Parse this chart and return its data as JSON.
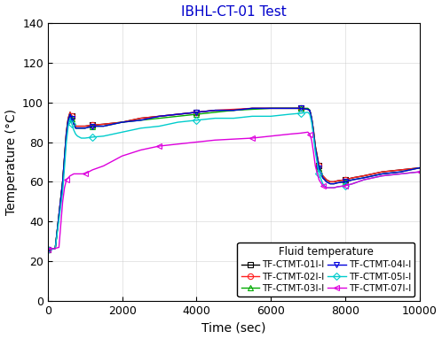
{
  "title": "IBHL-CT-01 Test",
  "xlabel": "Time (sec)",
  "ylabel": "Temperature (°C)",
  "xlim": [
    0,
    10000
  ],
  "ylim": [
    0,
    140
  ],
  "yticks": [
    0,
    20,
    40,
    60,
    80,
    100,
    120,
    140
  ],
  "xticks": [
    0,
    2000,
    4000,
    6000,
    8000,
    10000
  ],
  "legend_title": "Fluid temperature",
  "series": [
    {
      "label": "TF-CTMT-01I-I",
      "color": "#000000",
      "marker": "s",
      "marker_size": 4.5,
      "points": [
        [
          0,
          26
        ],
        [
          200,
          26.5
        ],
        [
          400,
          60
        ],
        [
          500,
          85
        ],
        [
          550,
          92
        ],
        [
          600,
          95
        ],
        [
          650,
          93
        ],
        [
          700,
          90
        ],
        [
          750,
          88
        ],
        [
          800,
          88
        ],
        [
          900,
          88
        ],
        [
          1000,
          88
        ],
        [
          1200,
          88.5
        ],
        [
          1500,
          89
        ],
        [
          2000,
          90
        ],
        [
          2500,
          92
        ],
        [
          3000,
          93
        ],
        [
          3500,
          94
        ],
        [
          4000,
          95
        ],
        [
          4500,
          96
        ],
        [
          5000,
          96
        ],
        [
          5500,
          97
        ],
        [
          6000,
          97
        ],
        [
          6500,
          97
        ],
        [
          6800,
          97
        ],
        [
          7000,
          96.5
        ],
        [
          7050,
          96
        ],
        [
          7100,
          92
        ],
        [
          7150,
          86
        ],
        [
          7200,
          78
        ],
        [
          7300,
          68
        ],
        [
          7400,
          63
        ],
        [
          7500,
          61
        ],
        [
          7600,
          60
        ],
        [
          7700,
          60
        ],
        [
          7800,
          60.5
        ],
        [
          8000,
          61
        ],
        [
          8200,
          62
        ],
        [
          8500,
          63
        ],
        [
          9000,
          65
        ],
        [
          9500,
          66
        ],
        [
          10000,
          67
        ]
      ]
    },
    {
      "label": "TF-CTMT-02I-I",
      "color": "#ff2020",
      "marker": "o",
      "marker_size": 4.5,
      "points": [
        [
          0,
          26
        ],
        [
          200,
          26.5
        ],
        [
          400,
          60
        ],
        [
          500,
          85
        ],
        [
          550,
          92
        ],
        [
          600,
          95
        ],
        [
          650,
          93
        ],
        [
          700,
          90
        ],
        [
          750,
          88
        ],
        [
          800,
          88
        ],
        [
          900,
          88
        ],
        [
          1000,
          88
        ],
        [
          1200,
          88.5
        ],
        [
          1500,
          89
        ],
        [
          2000,
          90
        ],
        [
          2500,
          92
        ],
        [
          3000,
          93
        ],
        [
          3500,
          94
        ],
        [
          4000,
          95
        ],
        [
          4500,
          96
        ],
        [
          5000,
          96.5
        ],
        [
          5500,
          97
        ],
        [
          6000,
          97
        ],
        [
          6500,
          97
        ],
        [
          6800,
          97
        ],
        [
          7000,
          96.5
        ],
        [
          7050,
          96
        ],
        [
          7100,
          92
        ],
        [
          7150,
          86
        ],
        [
          7200,
          78
        ],
        [
          7300,
          68
        ],
        [
          7400,
          63
        ],
        [
          7500,
          61
        ],
        [
          7600,
          60
        ],
        [
          7700,
          60
        ],
        [
          7800,
          60.5
        ],
        [
          8000,
          61
        ],
        [
          8200,
          62
        ],
        [
          8500,
          63
        ],
        [
          9000,
          65
        ],
        [
          9500,
          66
        ],
        [
          10000,
          67
        ]
      ]
    },
    {
      "label": "TF-CTMT-03I-I",
      "color": "#00aa00",
      "marker": "^",
      "marker_size": 4.5,
      "points": [
        [
          0,
          26
        ],
        [
          200,
          26.5
        ],
        [
          400,
          60
        ],
        [
          500,
          84
        ],
        [
          550,
          91
        ],
        [
          600,
          94
        ],
        [
          650,
          92
        ],
        [
          700,
          89
        ],
        [
          750,
          87
        ],
        [
          800,
          87
        ],
        [
          900,
          87
        ],
        [
          1000,
          87
        ],
        [
          1200,
          88
        ],
        [
          1500,
          88
        ],
        [
          2000,
          90
        ],
        [
          2500,
          91
        ],
        [
          3000,
          92
        ],
        [
          3500,
          93
        ],
        [
          4000,
          94
        ],
        [
          4500,
          95
        ],
        [
          5000,
          96
        ],
        [
          5500,
          96.5
        ],
        [
          6000,
          97
        ],
        [
          6500,
          97
        ],
        [
          6800,
          97
        ],
        [
          7000,
          97
        ],
        [
          7050,
          96
        ],
        [
          7100,
          92
        ],
        [
          7150,
          85
        ],
        [
          7200,
          77
        ],
        [
          7300,
          67
        ],
        [
          7400,
          62
        ],
        [
          7500,
          60
        ],
        [
          7600,
          59
        ],
        [
          7700,
          59
        ],
        [
          7800,
          59.5
        ],
        [
          8000,
          60
        ],
        [
          8200,
          61
        ],
        [
          8500,
          62
        ],
        [
          9000,
          64
        ],
        [
          9500,
          65
        ],
        [
          10000,
          67
        ]
      ]
    },
    {
      "label": "TF-CTMT-04I-I",
      "color": "#0000dd",
      "marker": "v",
      "marker_size": 4.5,
      "points": [
        [
          0,
          26
        ],
        [
          200,
          26.5
        ],
        [
          400,
          60
        ],
        [
          500,
          84
        ],
        [
          550,
          91
        ],
        [
          600,
          94
        ],
        [
          650,
          92
        ],
        [
          700,
          89
        ],
        [
          750,
          87
        ],
        [
          800,
          87
        ],
        [
          900,
          87
        ],
        [
          1000,
          87
        ],
        [
          1200,
          88
        ],
        [
          1500,
          88
        ],
        [
          2000,
          90
        ],
        [
          2500,
          91
        ],
        [
          3000,
          93
        ],
        [
          3500,
          94
        ],
        [
          4000,
          95
        ],
        [
          4500,
          96
        ],
        [
          5000,
          96
        ],
        [
          5500,
          97
        ],
        [
          6000,
          97
        ],
        [
          6500,
          97
        ],
        [
          6800,
          97
        ],
        [
          7000,
          96.5
        ],
        [
          7050,
          96
        ],
        [
          7100,
          92
        ],
        [
          7150,
          85
        ],
        [
          7200,
          77
        ],
        [
          7300,
          67
        ],
        [
          7400,
          62
        ],
        [
          7500,
          60
        ],
        [
          7600,
          59
        ],
        [
          7700,
          59
        ],
        [
          7800,
          59.5
        ],
        [
          8000,
          60
        ],
        [
          8200,
          61
        ],
        [
          8500,
          62
        ],
        [
          9000,
          64
        ],
        [
          9500,
          65
        ],
        [
          10000,
          67
        ]
      ]
    },
    {
      "label": "TF-CTMT-05I-I",
      "color": "#00cccc",
      "marker": "D",
      "marker_size": 4,
      "points": [
        [
          0,
          26
        ],
        [
          200,
          26.5
        ],
        [
          400,
          55
        ],
        [
          500,
          80
        ],
        [
          550,
          88
        ],
        [
          600,
          92
        ],
        [
          650,
          89
        ],
        [
          700,
          86
        ],
        [
          750,
          84
        ],
        [
          800,
          83
        ],
        [
          900,
          82
        ],
        [
          1000,
          82
        ],
        [
          1200,
          82.5
        ],
        [
          1500,
          83
        ],
        [
          2000,
          85
        ],
        [
          2500,
          87
        ],
        [
          3000,
          88
        ],
        [
          3500,
          90
        ],
        [
          4000,
          91
        ],
        [
          4500,
          92
        ],
        [
          5000,
          92
        ],
        [
          5500,
          93
        ],
        [
          6000,
          93
        ],
        [
          6500,
          94
        ],
        [
          6800,
          94.5
        ],
        [
          7000,
          95
        ],
        [
          7050,
          94
        ],
        [
          7100,
          90
        ],
        [
          7150,
          83
        ],
        [
          7200,
          75
        ],
        [
          7300,
          64
        ],
        [
          7400,
          59
        ],
        [
          7500,
          57
        ],
        [
          7600,
          57
        ],
        [
          7700,
          57
        ],
        [
          7800,
          57.5
        ],
        [
          8000,
          58
        ],
        [
          8200,
          59
        ],
        [
          8500,
          61
        ],
        [
          9000,
          63
        ],
        [
          9500,
          64
        ],
        [
          10000,
          65
        ]
      ]
    },
    {
      "label": "TF-CTMT-07I-I",
      "color": "#dd00dd",
      "marker": "<",
      "marker_size": 4.5,
      "points": [
        [
          0,
          26
        ],
        [
          200,
          26.5
        ],
        [
          300,
          27
        ],
        [
          400,
          50
        ],
        [
          450,
          57
        ],
        [
          500,
          61
        ],
        [
          600,
          63
        ],
        [
          700,
          64
        ],
        [
          800,
          64
        ],
        [
          900,
          64
        ],
        [
          1000,
          64
        ],
        [
          1200,
          66
        ],
        [
          1500,
          68
        ],
        [
          2000,
          73
        ],
        [
          2500,
          76
        ],
        [
          3000,
          78
        ],
        [
          3500,
          79
        ],
        [
          4000,
          80
        ],
        [
          4500,
          81
        ],
        [
          5000,
          81.5
        ],
        [
          5500,
          82
        ],
        [
          6000,
          83
        ],
        [
          6500,
          84
        ],
        [
          6800,
          84.5
        ],
        [
          7000,
          85
        ],
        [
          7050,
          84
        ],
        [
          7100,
          81
        ],
        [
          7150,
          75
        ],
        [
          7200,
          68
        ],
        [
          7300,
          61
        ],
        [
          7400,
          58
        ],
        [
          7500,
          57
        ],
        [
          7600,
          57
        ],
        [
          7700,
          57
        ],
        [
          7800,
          57.5
        ],
        [
          8000,
          58
        ],
        [
          8200,
          59
        ],
        [
          8500,
          61
        ],
        [
          9000,
          63
        ],
        [
          9500,
          64
        ],
        [
          10000,
          65
        ]
      ]
    }
  ],
  "title_color": "#0000cc",
  "title_fontsize": 11,
  "axis_fontsize": 10,
  "tick_fontsize": 9,
  "legend_fontsize": 7.5,
  "linewidth": 1.0,
  "figsize": [
    4.98,
    3.83
  ],
  "dpi": 100
}
